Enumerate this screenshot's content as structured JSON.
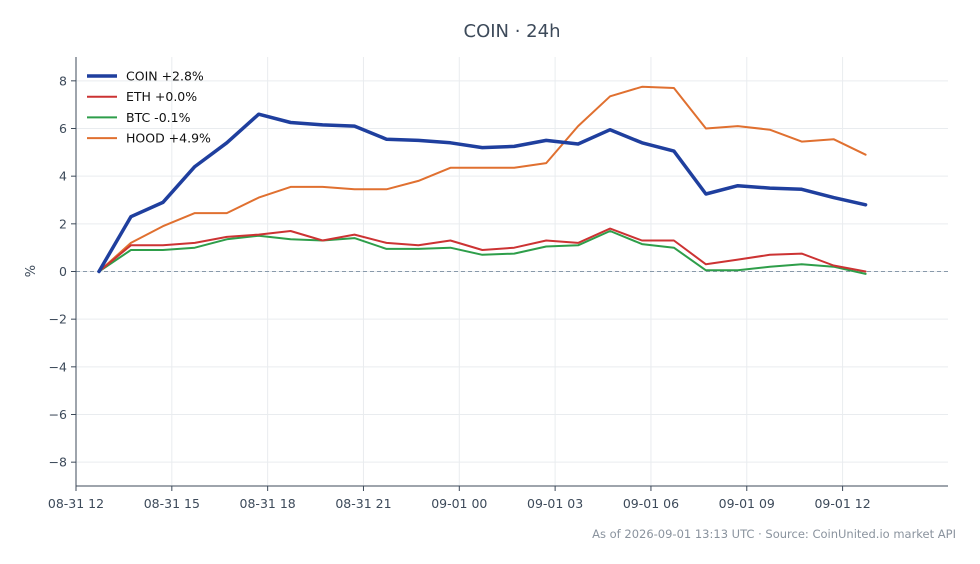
{
  "chart_data": {
    "type": "line",
    "title": "COIN · 24h",
    "xlabel": "",
    "ylabel": "%",
    "ylim": [
      -9,
      9
    ],
    "yticks": [
      -8,
      -6,
      -4,
      -2,
      0,
      2,
      4,
      6,
      8
    ],
    "ytick_labels": [
      "−8",
      "−6",
      "−4",
      "−2",
      "0",
      "2",
      "4",
      "6",
      "8"
    ],
    "xlim": [
      12.0,
      39.3
    ],
    "xtick_values": [
      12,
      15,
      18,
      21,
      24,
      27,
      30,
      33,
      36
    ],
    "xtick_labels": [
      "08-31 12",
      "08-31 15",
      "08-31 18",
      "08-31 21",
      "09-01 00",
      "09-01 03",
      "09-01 06",
      "09-01 09",
      "09-01 12"
    ],
    "x": [
      12.72,
      13.72,
      14.72,
      15.72,
      16.72,
      17.72,
      18.72,
      19.72,
      20.72,
      21.72,
      22.72,
      23.72,
      24.72,
      25.72,
      26.72,
      27.72,
      28.72,
      29.72,
      30.72,
      31.72,
      32.72,
      33.72,
      34.72,
      35.72,
      36.72
    ],
    "x_time_labels": [
      "08-31 12:43",
      "08-31 13:43",
      "08-31 14:43",
      "08-31 15:43",
      "08-31 16:43",
      "08-31 17:43",
      "08-31 18:43",
      "08-31 19:43",
      "08-31 20:43",
      "08-31 21:43",
      "08-31 22:43",
      "08-31 23:43",
      "09-01 00:43",
      "09-01 01:43",
      "09-01 02:43",
      "09-01 03:43",
      "09-01 04:43",
      "09-01 05:43",
      "09-01 06:43",
      "09-01 07:43",
      "09-01 08:43",
      "09-01 09:43",
      "09-01 10:43",
      "09-01 11:43",
      "09-01 12:43"
    ],
    "zero_line": true,
    "grid": true,
    "legend_position": "top-left",
    "series": [
      {
        "name": "COIN +2.8%",
        "color": "#1f3f9e",
        "width": 3.5,
        "values": [
          0.0,
          2.3,
          2.9,
          4.4,
          5.4,
          6.6,
          6.25,
          6.15,
          6.1,
          5.55,
          5.5,
          5.4,
          5.2,
          5.25,
          5.5,
          5.35,
          5.95,
          5.4,
          5.05,
          3.25,
          3.6,
          3.5,
          3.45,
          3.1,
          2.8
        ]
      },
      {
        "name": "ETH +0.0%",
        "color": "#cc3333",
        "width": 2,
        "values": [
          0.0,
          1.1,
          1.1,
          1.2,
          1.45,
          1.55,
          1.7,
          1.3,
          1.55,
          1.2,
          1.1,
          1.3,
          0.9,
          1.0,
          1.3,
          1.2,
          1.8,
          1.3,
          1.3,
          0.3,
          0.5,
          0.7,
          0.75,
          0.25,
          0.0
        ]
      },
      {
        "name": "BTC -0.1%",
        "color": "#2e9e4a",
        "width": 2,
        "values": [
          0.0,
          0.9,
          0.9,
          1.0,
          1.35,
          1.5,
          1.35,
          1.3,
          1.4,
          0.95,
          0.95,
          1.0,
          0.7,
          0.75,
          1.05,
          1.1,
          1.7,
          1.15,
          1.0,
          0.05,
          0.05,
          0.2,
          0.3,
          0.2,
          -0.1
        ]
      },
      {
        "name": "HOOD +4.9%",
        "color": "#e07030",
        "width": 2,
        "values": [
          0.0,
          1.2,
          1.9,
          2.45,
          2.45,
          3.1,
          3.55,
          3.55,
          3.45,
          3.45,
          3.8,
          4.35,
          4.35,
          4.35,
          4.55,
          6.1,
          7.35,
          7.75,
          7.7,
          6.0,
          6.1,
          5.95,
          5.45,
          5.55,
          4.9
        ]
      }
    ]
  },
  "footer": "As of 2026-09-01 13:13 UTC · Source: CoinUnited.io market API"
}
